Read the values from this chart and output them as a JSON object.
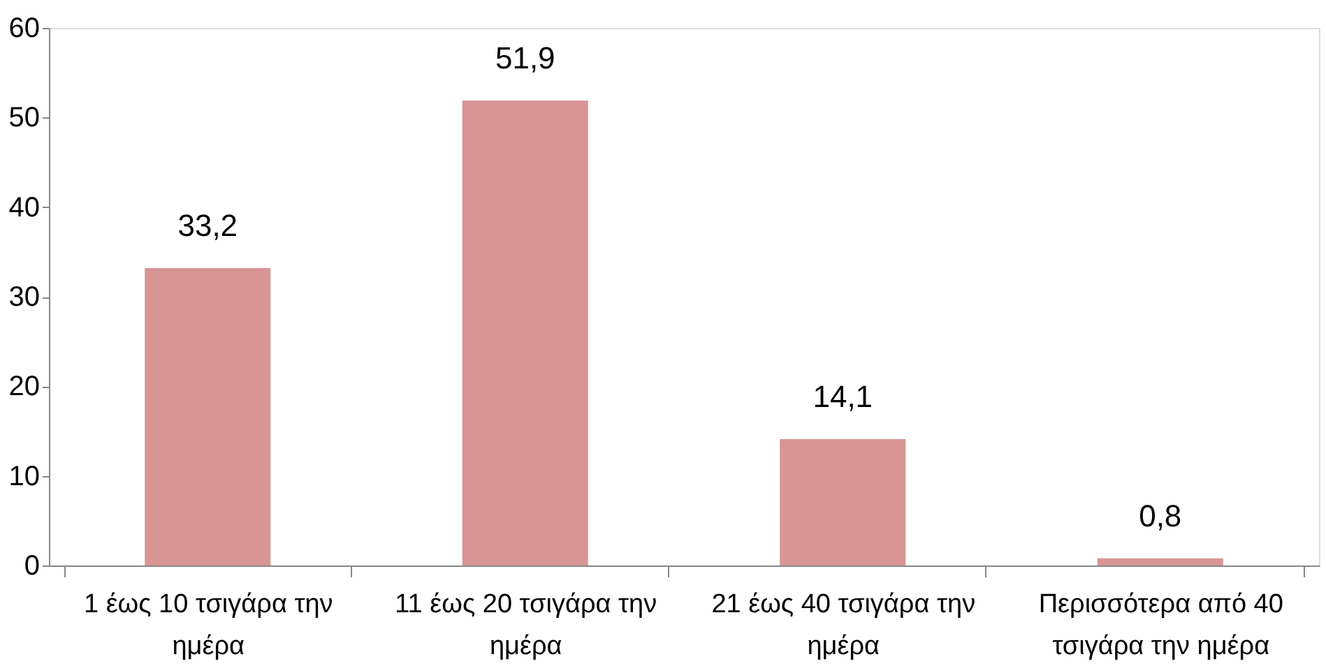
{
  "chart_data": {
    "type": "bar",
    "categories": [
      "1 έως 10 τσιγάρα την ημέρα",
      "11 έως 20 τσιγάρα την ημέρα",
      "21 έως 40 τσιγάρα την ημέρα",
      "Περισσότερα από 40 τσιγάρα την ημέρα"
    ],
    "values": [
      33.2,
      51.9,
      14.1,
      0.8
    ],
    "value_labels": [
      "33,2",
      "51,9",
      "14,1",
      "0,8"
    ],
    "color": "#d99594",
    "ylim": [
      0,
      60
    ],
    "yticks": [
      0,
      10,
      20,
      30,
      40,
      50,
      60
    ],
    "grid": false
  }
}
